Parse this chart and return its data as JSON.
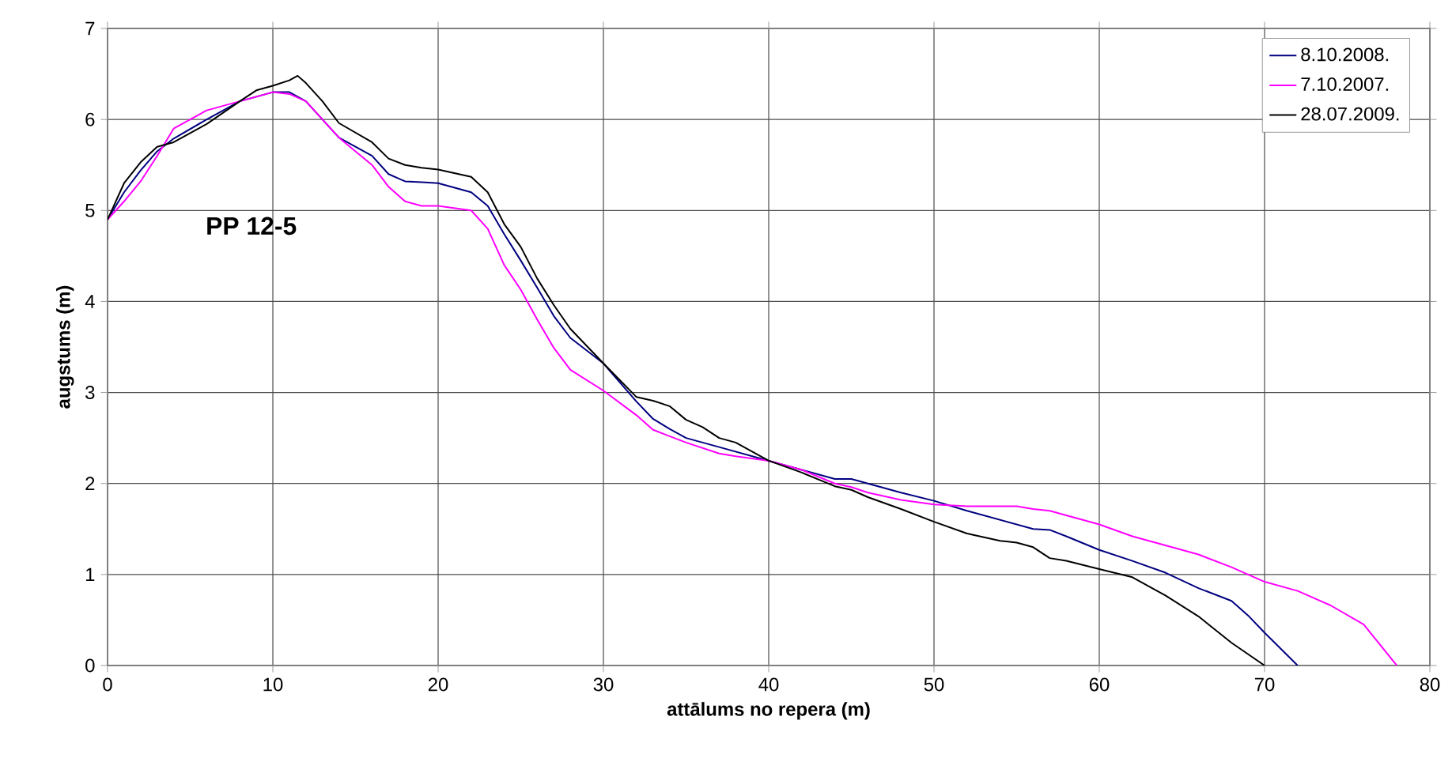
{
  "chart_data": {
    "type": "line",
    "xlabel": "attālums no repera (m)",
    "ylabel": "augstums (m)",
    "annotations": [
      "PP 12-5"
    ],
    "xlim": [
      0,
      80
    ],
    "ylim": [
      0,
      7
    ],
    "xticks": [
      0,
      10,
      20,
      30,
      40,
      50,
      60,
      70,
      80
    ],
    "yticks": [
      0,
      1,
      2,
      3,
      4,
      5,
      6,
      7
    ],
    "grid": true,
    "legend": "top right",
    "marker": "none",
    "line_style": "solid",
    "series": [
      {
        "name": "8.10.2008.",
        "color": "#000080",
        "x": [
          0,
          1,
          2,
          3,
          4,
          6,
          7,
          8,
          10,
          11,
          12,
          14,
          16,
          17,
          18,
          19,
          20,
          22,
          23,
          24,
          25,
          26,
          27,
          28,
          30,
          32,
          33,
          34,
          35,
          37,
          38,
          40,
          42,
          44,
          45,
          46,
          48,
          50,
          52,
          54,
          55,
          56,
          57,
          58,
          60,
          62,
          64,
          66,
          68,
          69,
          70,
          72
        ],
        "values": [
          4.9,
          5.2,
          5.44,
          5.65,
          5.79,
          6.0,
          6.1,
          6.2,
          6.3,
          6.3,
          6.2,
          5.8,
          5.6,
          5.4,
          5.32,
          5.31,
          5.3,
          5.2,
          5.05,
          4.74,
          4.45,
          4.15,
          3.84,
          3.6,
          3.32,
          2.9,
          2.71,
          2.6,
          2.5,
          2.4,
          2.35,
          2.25,
          2.15,
          2.05,
          2.05,
          2.0,
          1.9,
          1.81,
          1.7,
          1.6,
          1.55,
          1.5,
          1.49,
          1.42,
          1.27,
          1.15,
          1.02,
          0.85,
          0.71,
          0.55,
          0.36,
          0
        ]
      },
      {
        "name": "7.10.2007.",
        "color": "#ff00ff",
        "x": [
          0,
          1,
          2,
          3,
          4,
          5,
          6,
          8,
          10,
          11,
          12,
          14,
          16,
          17,
          18,
          19,
          20,
          22,
          23,
          24,
          25,
          26,
          27,
          28,
          30,
          32,
          33,
          34,
          35,
          37,
          38,
          40,
          42,
          44,
          45,
          46,
          48,
          50,
          52,
          54,
          55,
          56,
          57,
          58,
          60,
          62,
          64,
          66,
          68,
          70,
          72,
          74,
          76,
          78
        ],
        "values": [
          4.9,
          5.1,
          5.32,
          5.6,
          5.9,
          6.0,
          6.1,
          6.2,
          6.3,
          6.28,
          6.2,
          5.8,
          5.5,
          5.26,
          5.1,
          5.05,
          5.05,
          5.0,
          4.8,
          4.4,
          4.13,
          3.8,
          3.49,
          3.25,
          3.02,
          2.75,
          2.59,
          2.52,
          2.45,
          2.33,
          2.3,
          2.25,
          2.15,
          2.0,
          1.96,
          1.9,
          1.82,
          1.77,
          1.75,
          1.75,
          1.75,
          1.72,
          1.7,
          1.65,
          1.55,
          1.42,
          1.32,
          1.22,
          1.08,
          0.92,
          0.82,
          0.66,
          0.45,
          0
        ]
      },
      {
        "name": "28.07.2009.",
        "color": "#000000",
        "x": [
          0,
          1,
          2,
          3,
          4,
          6,
          8,
          9,
          10,
          11,
          11.5,
          12,
          13,
          14,
          16,
          17,
          18,
          19,
          20,
          22,
          23,
          24,
          25,
          26,
          27,
          28,
          30,
          32,
          33,
          34,
          35,
          36,
          37,
          38,
          40,
          42,
          44,
          45,
          46,
          48,
          50,
          52,
          54,
          55,
          56,
          57,
          58,
          60,
          62,
          64,
          66,
          68,
          70
        ],
        "values": [
          4.9,
          5.3,
          5.53,
          5.7,
          5.75,
          5.95,
          6.2,
          6.32,
          6.37,
          6.43,
          6.48,
          6.4,
          6.2,
          5.96,
          5.75,
          5.57,
          5.5,
          5.47,
          5.45,
          5.37,
          5.2,
          4.85,
          4.6,
          4.25,
          3.96,
          3.7,
          3.32,
          2.95,
          2.91,
          2.85,
          2.7,
          2.62,
          2.5,
          2.45,
          2.25,
          2.12,
          1.97,
          1.93,
          1.85,
          1.72,
          1.58,
          1.45,
          1.37,
          1.35,
          1.3,
          1.18,
          1.15,
          1.06,
          0.97,
          0.77,
          0.54,
          0.25,
          0
        ]
      }
    ]
  }
}
